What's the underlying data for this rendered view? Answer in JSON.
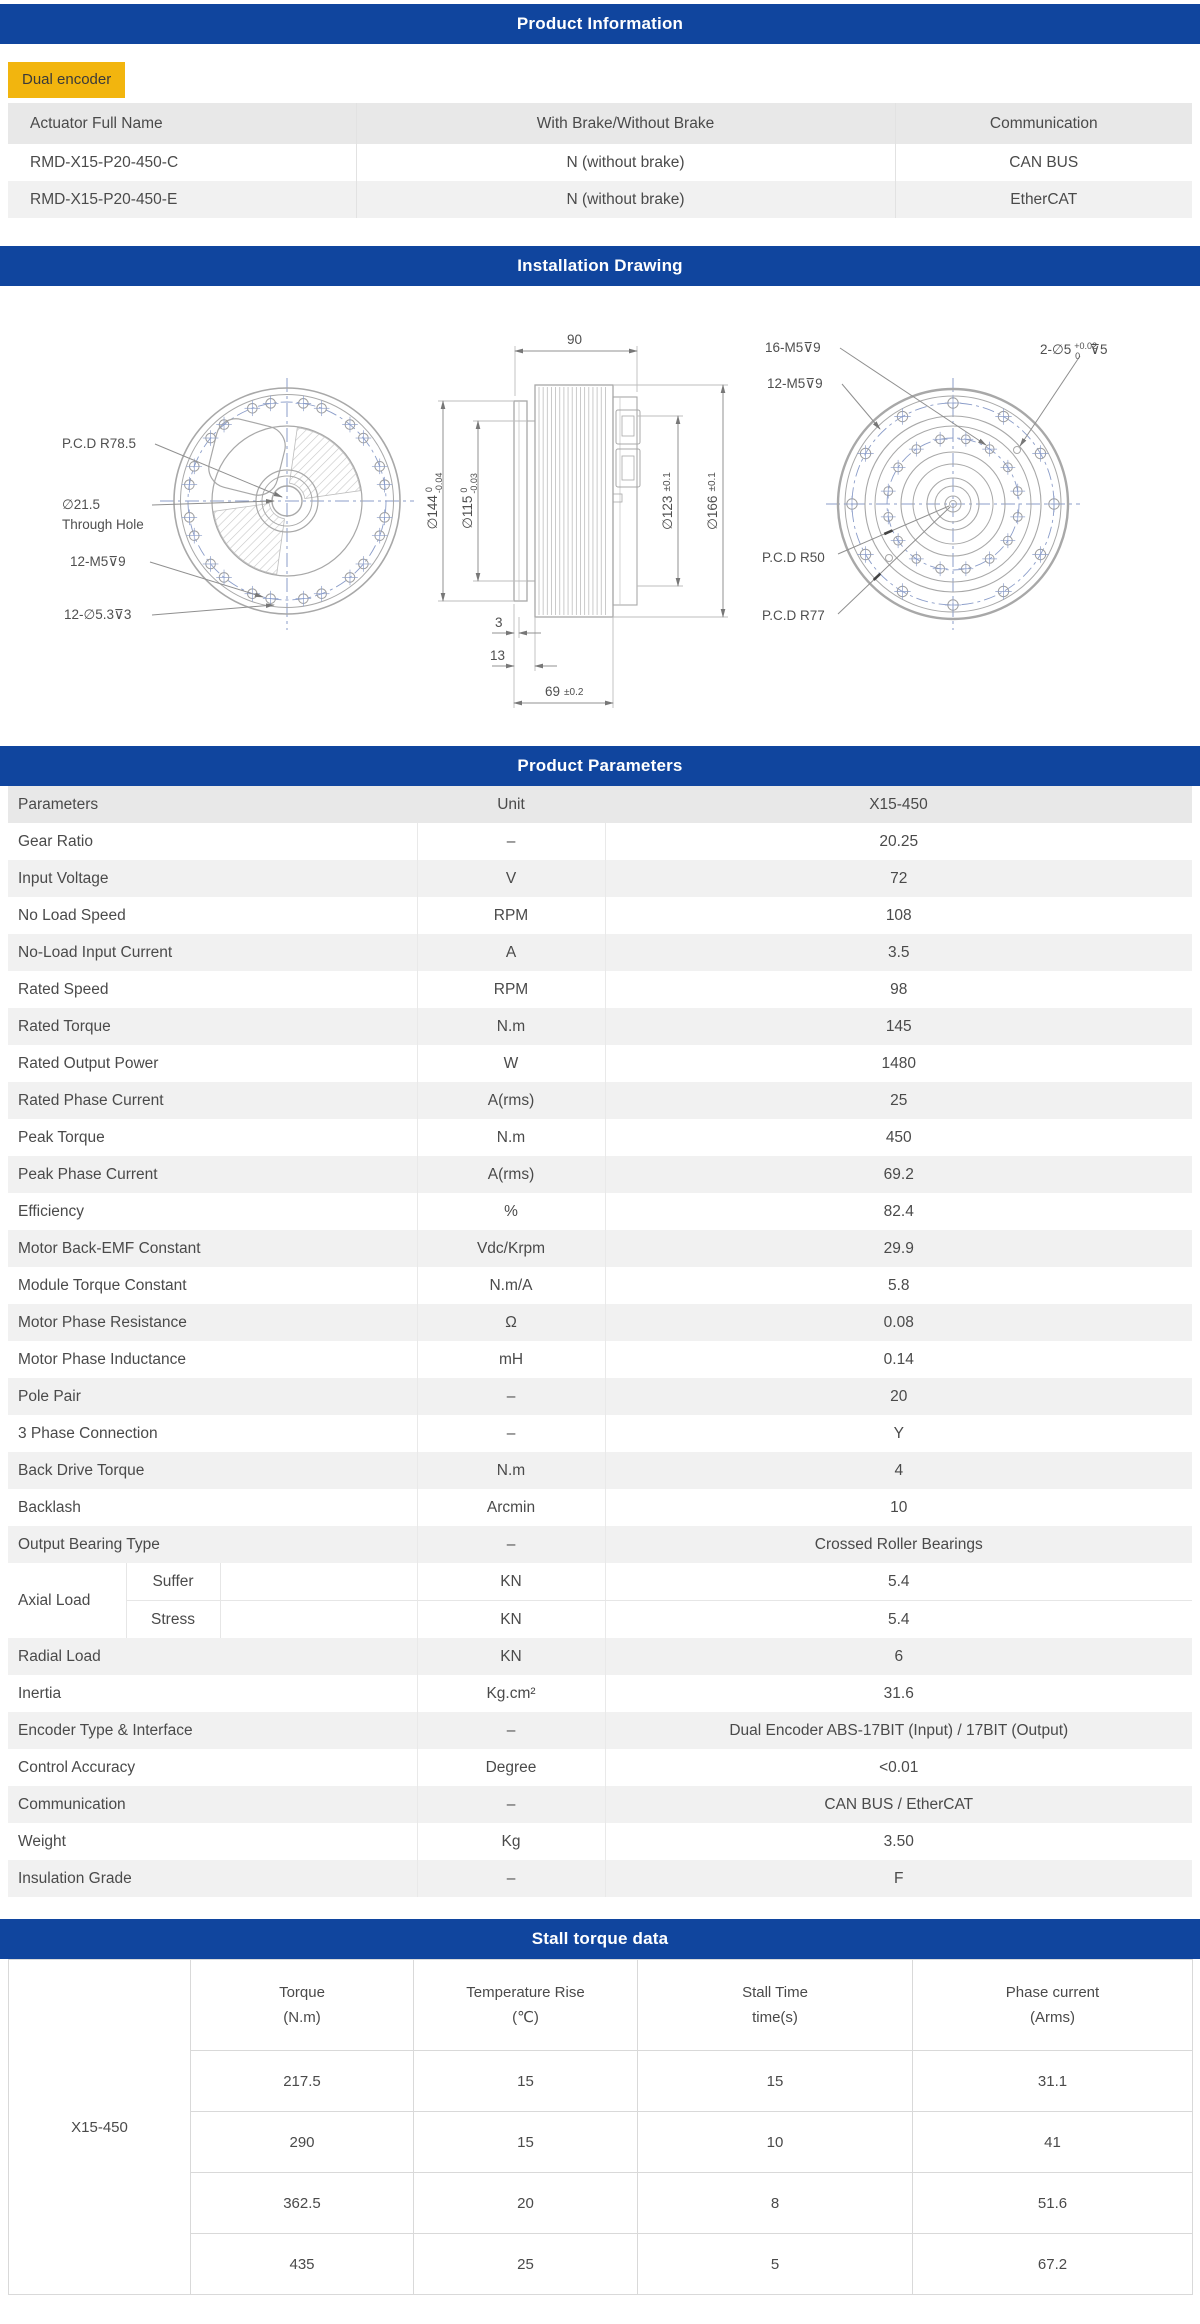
{
  "colors": {
    "header_blue": "#10459e",
    "badge_yellow": "#f2b50e",
    "header_gray": "#e8e8e8",
    "row_gray": "#f1f1f1",
    "text": "#4a4a4a",
    "table_border": "#d9d9d9"
  },
  "sections": {
    "product_information": {
      "title": "Product Information",
      "badge": "Dual encoder",
      "table": {
        "headers": [
          "Actuator Full Name",
          "With Brake/Without Brake",
          "Communication"
        ],
        "rows": [
          [
            "RMD-X15-P20-450-C",
            "N (without brake)",
            "CAN BUS"
          ],
          [
            "RMD-X15-P20-450-E",
            "N (without brake)",
            "EtherCAT"
          ]
        ]
      }
    },
    "installation_drawing": {
      "title": "Installation Drawing",
      "left_view": {
        "pcd_label": "P.C.D R78.5",
        "through_hole_dia": "∅21.5",
        "through_hole_label": "Through Hole",
        "tapped_holes": "12-M5⊽9",
        "counterbore_holes": "12-∅5.3⊽3"
      },
      "side_view": {
        "width_top": "90",
        "dia_144": "∅144",
        "dia_144_tol_top": "0",
        "dia_144_tol_bottom": "-0.04",
        "dia_115": "∅115",
        "dia_115_tol_top": "0",
        "dia_115_tol_bottom": "-0.03",
        "dia_123": "∅123",
        "dia_123_tol": "±0.1",
        "dia_166": "∅166",
        "dia_166_tol": "±0.1",
        "step_3": "3",
        "step_13": "13",
        "length_69": "69",
        "length_69_tol": "±0.2"
      },
      "right_view": {
        "tapped_16": "16-M5⊽9",
        "tapped_12": "12-M5⊽9",
        "pin_holes": "2-∅5",
        "pin_tol_top": "+0.02",
        "pin_tol_bottom": "0",
        "pin_depth": "⊽5",
        "pcd_50": "P.C.D R50",
        "pcd_77": "P.C.D R77"
      }
    },
    "product_parameters": {
      "title": "Product Parameters",
      "table": {
        "headers": [
          "Parameters",
          "Unit",
          "X15-450"
        ],
        "rows": [
          [
            "Gear Ratio",
            "–",
            "20.25"
          ],
          [
            "Input Voltage",
            "V",
            "72"
          ],
          [
            "No Load Speed",
            "RPM",
            "108"
          ],
          [
            "No-Load Input Current",
            "A",
            "3.5"
          ],
          [
            "Rated Speed",
            "RPM",
            "98"
          ],
          [
            "Rated Torque",
            "N.m",
            "145"
          ],
          [
            "Rated Output Power",
            "W",
            "1480"
          ],
          [
            "Rated Phase Current",
            "A(rms)",
            "25"
          ],
          [
            "Peak Torque",
            "N.m",
            "450"
          ],
          [
            "Peak Phase Current",
            "A(rms)",
            "69.2"
          ],
          [
            "Efficiency",
            "%",
            "82.4"
          ],
          [
            "Motor Back-EMF Constant",
            "Vdc/Krpm",
            "29.9"
          ],
          [
            "Module Torque Constant",
            "N.m/A",
            "5.8"
          ],
          [
            "Motor Phase Resistance",
            "Ω",
            "0.08"
          ],
          [
            "Motor Phase Inductance",
            "mH",
            "0.14"
          ],
          [
            "Pole Pair",
            "–",
            "20"
          ],
          [
            "3 Phase Connection",
            "–",
            "Y"
          ],
          [
            "Back Drive Torque",
            "N.m",
            "4"
          ],
          [
            "Backlash",
            "Arcmin",
            "10"
          ],
          [
            "Output Bearing Type",
            "–",
            "Crossed Roller Bearings"
          ],
          {
            "group": "Axial Load",
            "subrows": [
              [
                "Suffer",
                "KN",
                "5.4"
              ],
              [
                "Stress",
                "KN",
                "5.4"
              ]
            ]
          },
          [
            "Radial Load",
            "KN",
            "6"
          ],
          [
            "Inertia",
            "Kg.cm²",
            "31.6"
          ],
          [
            "Encoder Type & Interface",
            "–",
            "Dual Encoder ABS-17BIT (Input) / 17BIT (Output)"
          ],
          [
            "Control Accuracy",
            "Degree",
            "<0.01"
          ],
          [
            "Communication",
            "–",
            "CAN BUS / EtherCAT"
          ],
          [
            "Weight",
            "Kg",
            "3.50"
          ],
          [
            "Insulation Grade",
            "–",
            "F"
          ]
        ]
      }
    },
    "stall_torque": {
      "title": "Stall torque data",
      "table": {
        "row_label": "X15-450",
        "headers": [
          {
            "l1": "Torque",
            "l2": "(N.m)"
          },
          {
            "l1": "Temperature Rise",
            "l2": "(℃)"
          },
          {
            "l1": "Stall Time",
            "l2": "time(s)"
          },
          {
            "l1": "Phase current",
            "l2": "(Arms)"
          }
        ],
        "rows": [
          [
            "217.5",
            "15",
            "15",
            "31.1"
          ],
          [
            "290",
            "15",
            "10",
            "41"
          ],
          [
            "362.5",
            "20",
            "8",
            "51.6"
          ],
          [
            "435",
            "25",
            "5",
            "67.2"
          ]
        ]
      }
    }
  }
}
